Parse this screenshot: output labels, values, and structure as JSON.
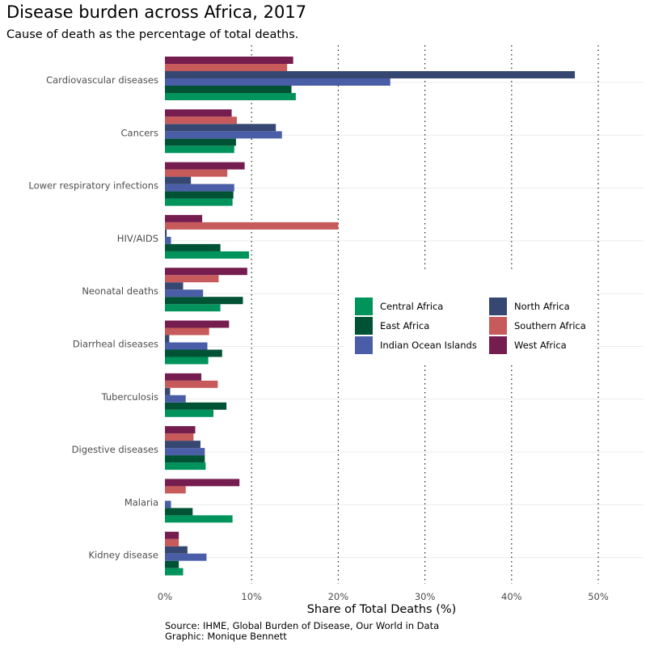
{
  "chart_data": {
    "type": "bar",
    "orientation": "horizontal",
    "title": "Disease burden across Africa, 2017",
    "subtitle": "Cause of death as the percentage of total deaths.",
    "xlabel": "Share of Total Deaths (%)",
    "ylabel": "",
    "xlim": [
      0,
      55
    ],
    "xticks": [
      0,
      10,
      20,
      30,
      40,
      50
    ],
    "xtick_labels": [
      "0%",
      "10%",
      "20%",
      "30%",
      "40%",
      "50%"
    ],
    "grid": "dotted vertical lines at 10% intervals; light horizontal gridlines at categories",
    "legend_position": "center-right",
    "caption_lines": [
      "Source: IHME, Global Burden of Disease, Our World in Data",
      "Graphic: Monique Bennett"
    ],
    "categories": [
      "Cardiovascular diseases",
      "Cancers",
      "Lower respiratory infections",
      "HIV/AIDS",
      "Neonatal deaths",
      "Diarrheal diseases",
      "Tuberculosis",
      "Digestive diseases",
      "Malaria",
      "Kidney disease"
    ],
    "series": [
      {
        "name": "Central Africa",
        "color": "#00935C",
        "values": [
          15.1,
          8.0,
          7.8,
          9.7,
          6.4,
          5.0,
          5.6,
          4.7,
          7.8,
          2.1
        ]
      },
      {
        "name": "East Africa",
        "color": "#005235",
        "values": [
          14.6,
          8.2,
          7.9,
          6.4,
          9.0,
          6.6,
          7.1,
          4.6,
          3.2,
          1.6
        ]
      },
      {
        "name": "Indian Ocean Islands",
        "color": "#4A5EA8",
        "values": [
          26.0,
          13.5,
          8.0,
          0.7,
          4.4,
          4.9,
          2.4,
          4.6,
          0.7,
          4.8
        ]
      },
      {
        "name": "North Africa",
        "color": "#364872",
        "values": [
          47.3,
          12.8,
          3.0,
          0.2,
          2.1,
          0.5,
          0.6,
          4.1,
          0.0,
          2.6
        ]
      },
      {
        "name": "Southern Africa",
        "color": "#C75A5A",
        "values": [
          14.1,
          8.3,
          7.2,
          20.0,
          6.2,
          5.1,
          6.1,
          3.3,
          2.4,
          1.6
        ]
      },
      {
        "name": "West Africa",
        "color": "#761D50",
        "values": [
          14.8,
          7.7,
          9.2,
          4.3,
          9.5,
          7.4,
          4.2,
          3.5,
          8.6,
          1.6
        ]
      }
    ]
  }
}
